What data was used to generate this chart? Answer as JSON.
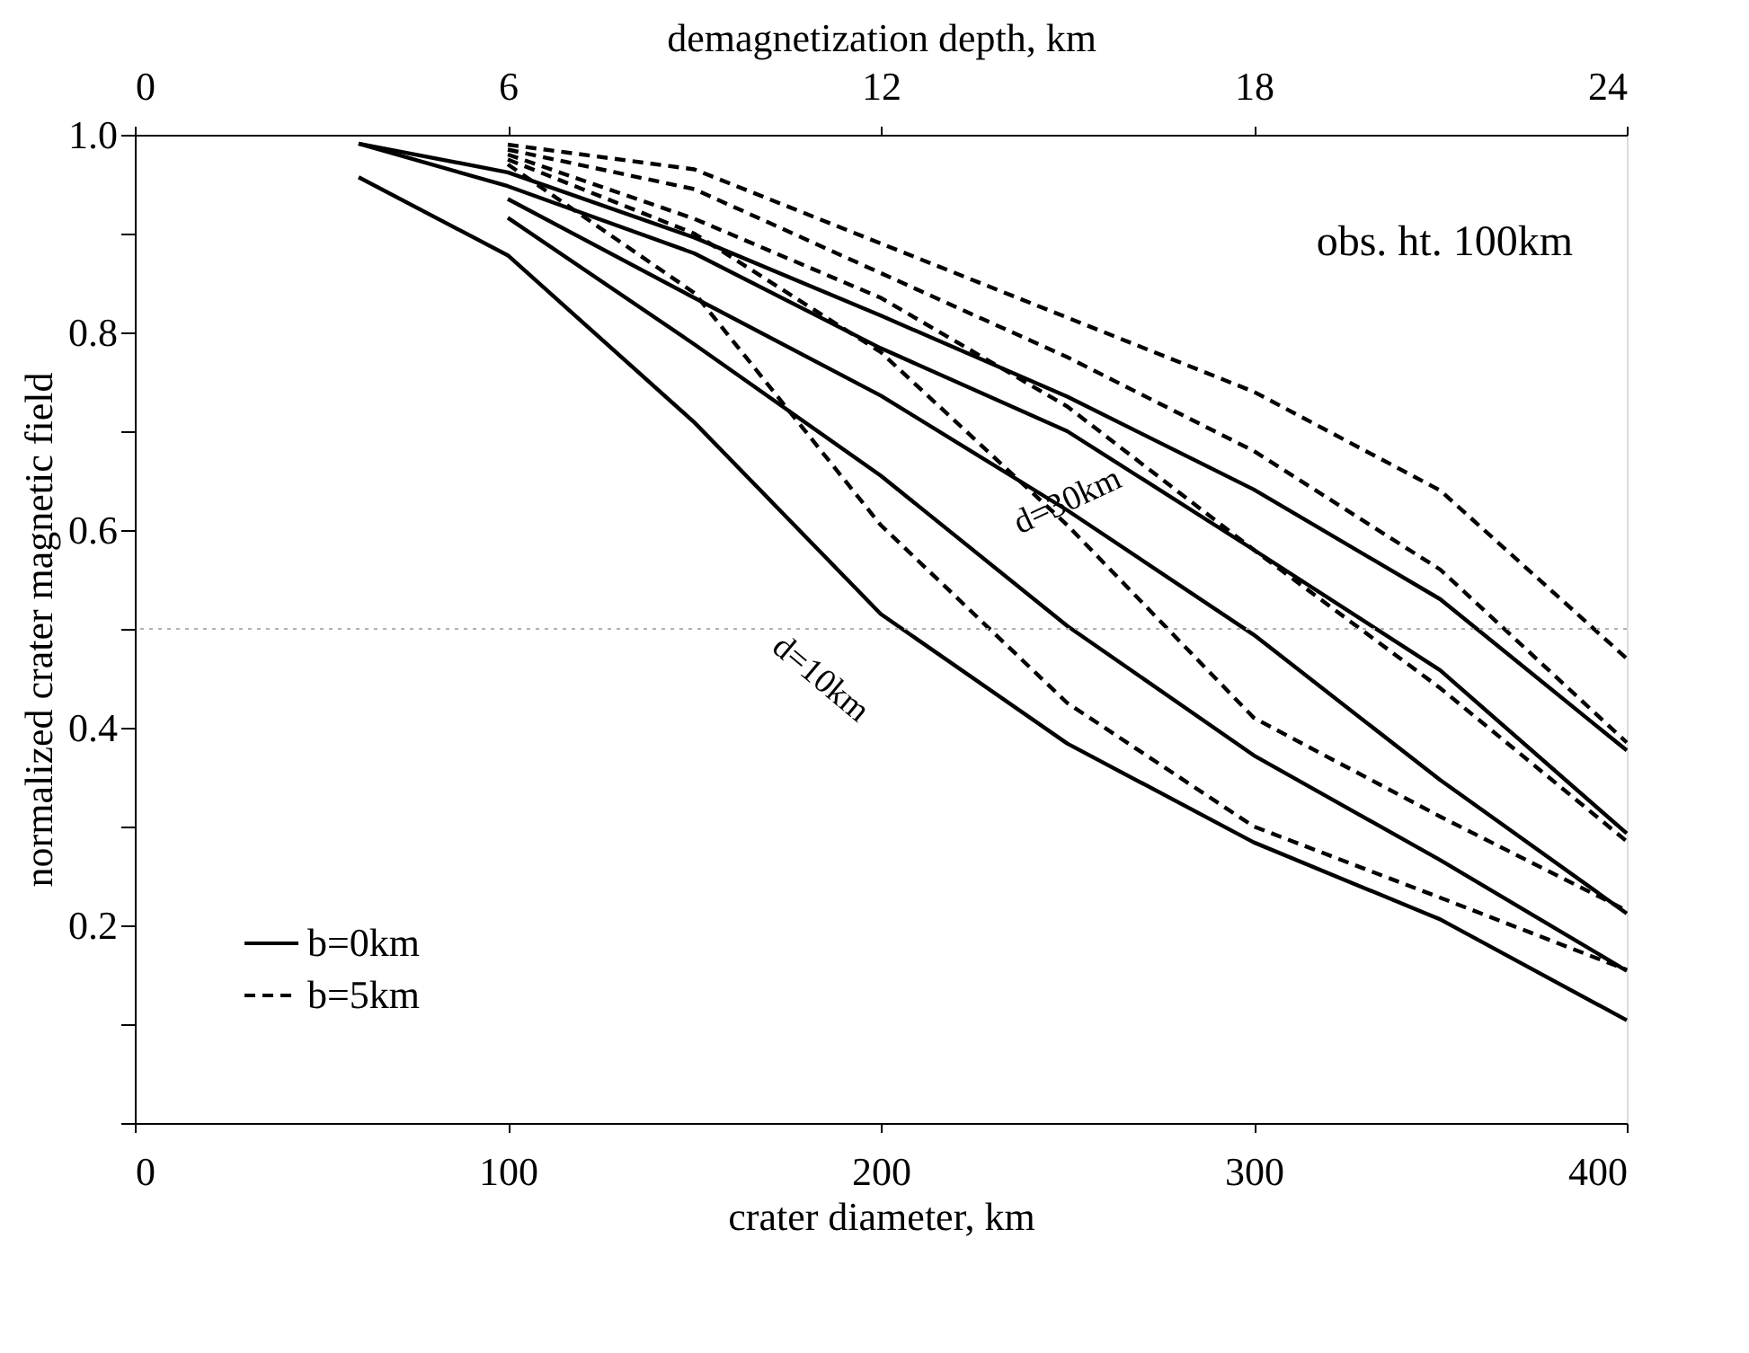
{
  "chart_data": {
    "type": "line",
    "xlabel": "crater diameter, km",
    "ylabel": "normalized crater magnetic field",
    "x2label": "demagnetization depth, km",
    "xlim": [
      0,
      400
    ],
    "xticks": [
      0,
      100,
      200,
      300,
      400
    ],
    "x2lim": [
      0,
      24
    ],
    "x2ticks": [
      0,
      6,
      12,
      18,
      24
    ],
    "ylim": [
      0,
      1
    ],
    "yticks": [
      {
        "value": 0,
        "label": null
      },
      {
        "value": 0.1,
        "label": null
      },
      0.2,
      {
        "value": 0.3,
        "label": null
      },
      0.4,
      {
        "value": 0.5,
        "label": null
      },
      0.6,
      {
        "value": 0.7,
        "label": null
      },
      0.8,
      {
        "value": 0.9,
        "label": null
      },
      {
        "value": 1,
        "label": "1.0"
      }
    ],
    "grid": false,
    "legend": "bottom left",
    "marker": "none",
    "series": [
      {
        "name": "b=0km",
        "color": "#000000",
        "line_style": "solid",
        "x": [
          60,
          100,
          150,
          200,
          250,
          300,
          350,
          400
        ],
        "values": [
          0.991,
          0.962,
          0.896,
          0.817,
          0.735,
          0.641,
          0.53,
          0.377
        ]
      },
      {
        "color": "#000000",
        "line_style": "solid",
        "x": [
          60,
          100,
          150,
          200,
          250,
          300,
          350,
          400
        ],
        "values": [
          0.991,
          0.948,
          0.88,
          0.784,
          0.7,
          0.58,
          0.458,
          0.293
        ]
      },
      {
        "color": "#000000",
        "line_style": "solid",
        "x": [
          100,
          150,
          200,
          250,
          300,
          350,
          400
        ],
        "values": [
          0.935,
          0.835,
          0.736,
          0.62,
          0.494,
          0.347,
          0.212
        ]
      },
      {
        "color": "#000000",
        "line_style": "solid",
        "x": [
          100,
          150,
          200,
          250,
          300,
          350,
          400
        ],
        "values": [
          0.916,
          0.788,
          0.655,
          0.503,
          0.372,
          0.266,
          0.154
        ]
      },
      {
        "color": "#000000",
        "line_style": "solid",
        "x": [
          60,
          100,
          150,
          200,
          250,
          300,
          350,
          400
        ],
        "values": [
          0.957,
          0.878,
          0.709,
          0.515,
          0.384,
          0.284,
          0.206,
          0.104
        ]
      },
      {
        "name": "b=5km",
        "color": "#000000",
        "line_style": "dashed",
        "x": [
          100,
          150,
          200,
          250,
          300,
          350,
          400
        ],
        "values": [
          0.99,
          0.965,
          0.89,
          0.815,
          0.74,
          0.64,
          0.47
        ]
      },
      {
        "color": "#000000",
        "line_style": "dashed",
        "x": [
          100,
          150,
          200,
          250,
          300,
          350,
          400
        ],
        "values": [
          0.985,
          0.945,
          0.86,
          0.775,
          0.68,
          0.56,
          0.385
        ]
      },
      {
        "color": "#000000",
        "line_style": "dashed",
        "x": [
          100,
          150,
          200,
          250,
          300,
          350,
          400
        ],
        "values": [
          0.98,
          0.915,
          0.835,
          0.725,
          0.58,
          0.44,
          0.285
        ]
      },
      {
        "color": "#000000",
        "line_style": "dashed",
        "x": [
          100,
          150,
          200,
          250,
          300,
          350,
          400
        ],
        "values": [
          0.975,
          0.9,
          0.78,
          0.605,
          0.41,
          0.31,
          0.215
        ]
      },
      {
        "color": "#000000",
        "line_style": "dashed",
        "x": [
          100,
          150,
          200,
          250,
          300,
          350,
          400
        ],
        "values": [
          0.97,
          0.84,
          0.605,
          0.425,
          0.3,
          0.228,
          0.155
        ]
      }
    ],
    "ref_lines": [
      {
        "axis": "y",
        "value": 0.5,
        "label": null,
        "color": "#b0b0b0",
        "line_style": "dotted"
      }
    ],
    "annotations": [
      "obs. ht. 100km",
      {
        "text": "d=30km",
        "x": 250,
        "y": 0.63
      },
      "d=10km"
    ]
  }
}
